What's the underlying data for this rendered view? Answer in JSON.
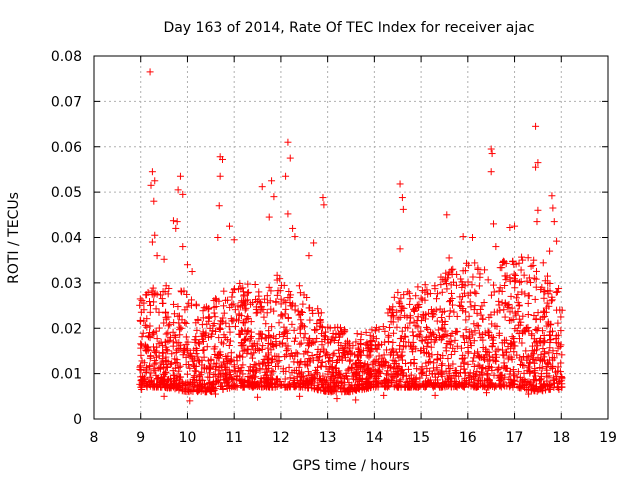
{
  "chart_data": {
    "type": "scatter",
    "title": "Day 163 of 2014, Rate Of TEC Index for receiver ajac",
    "xlabel": "GPS time / hours",
    "ylabel": "ROTI / TECUs",
    "xlim": [
      8,
      19
    ],
    "ylim": [
      0,
      0.08
    ],
    "x_ticks": [
      "8",
      "9",
      "10",
      "11",
      "12",
      "13",
      "14",
      "15",
      "16",
      "17",
      "18",
      "19"
    ],
    "y_ticks": [
      "0",
      "0.01",
      "0.02",
      "0.03",
      "0.04",
      "0.05",
      "0.06",
      "0.07",
      "0.08"
    ],
    "grid": true,
    "marker": "+",
    "series_color": "#ff0000",
    "series": [
      {
        "name": "ROTI",
        "points": [
          [
            9.2,
            0.0765
          ],
          [
            9.25,
            0.0545
          ],
          [
            9.3,
            0.0525
          ],
          [
            9.22,
            0.0515
          ],
          [
            9.28,
            0.048
          ],
          [
            9.3,
            0.0405
          ],
          [
            9.25,
            0.039
          ],
          [
            9.35,
            0.036
          ],
          [
            9.5,
            0.0352
          ],
          [
            9.7,
            0.0437
          ],
          [
            9.8,
            0.0505
          ],
          [
            9.85,
            0.0535
          ],
          [
            9.9,
            0.0495
          ],
          [
            9.78,
            0.0435
          ],
          [
            9.75,
            0.042
          ],
          [
            9.9,
            0.038
          ],
          [
            10.0,
            0.034
          ],
          [
            10.1,
            0.0325
          ],
          [
            10.7,
            0.0578
          ],
          [
            10.75,
            0.0572
          ],
          [
            10.7,
            0.0535
          ],
          [
            10.68,
            0.047
          ],
          [
            10.65,
            0.04
          ],
          [
            10.9,
            0.0425
          ],
          [
            11.0,
            0.0395
          ],
          [
            11.8,
            0.0525
          ],
          [
            11.85,
            0.049
          ],
          [
            11.75,
            0.0445
          ],
          [
            11.6,
            0.0512
          ],
          [
            12.15,
            0.061
          ],
          [
            12.2,
            0.0575
          ],
          [
            12.1,
            0.0535
          ],
          [
            12.15,
            0.0452
          ],
          [
            12.25,
            0.042
          ],
          [
            12.3,
            0.0402
          ],
          [
            12.7,
            0.0388
          ],
          [
            12.9,
            0.0488
          ],
          [
            12.92,
            0.0472
          ],
          [
            12.6,
            0.036
          ],
          [
            14.55,
            0.0518
          ],
          [
            14.6,
            0.0488
          ],
          [
            14.62,
            0.0462
          ],
          [
            14.55,
            0.0375
          ],
          [
            15.55,
            0.045
          ],
          [
            15.6,
            0.0355
          ],
          [
            15.9,
            0.0402
          ],
          [
            16.1,
            0.04
          ],
          [
            16.5,
            0.0595
          ],
          [
            16.52,
            0.0585
          ],
          [
            16.5,
            0.0545
          ],
          [
            16.55,
            0.043
          ],
          [
            16.6,
            0.038
          ],
          [
            16.9,
            0.0422
          ],
          [
            17.0,
            0.0425
          ],
          [
            17.45,
            0.0645
          ],
          [
            17.5,
            0.0565
          ],
          [
            17.45,
            0.0555
          ],
          [
            17.5,
            0.046
          ],
          [
            17.48,
            0.0435
          ],
          [
            17.8,
            0.0492
          ],
          [
            17.82,
            0.0465
          ],
          [
            17.85,
            0.0435
          ],
          [
            17.9,
            0.0392
          ],
          [
            17.75,
            0.037
          ],
          [
            9.02,
            0.0065
          ],
          [
            9.5,
            0.005
          ],
          [
            10.05,
            0.004
          ],
          [
            10.6,
            0.0055
          ],
          [
            11.5,
            0.0048
          ],
          [
            12.4,
            0.005
          ],
          [
            13.2,
            0.0045
          ],
          [
            13.6,
            0.0042
          ],
          [
            14.2,
            0.0052
          ],
          [
            15.3,
            0.0052
          ],
          [
            16.4,
            0.0058
          ],
          [
            17.3,
            0.0055
          ],
          [
            17.95,
            0.0065
          ]
        ]
      }
    ],
    "density_envelope": {
      "x": [
        9.0,
        9.5,
        10.0,
        10.5,
        11.0,
        11.5,
        12.0,
        12.5,
        13.0,
        13.5,
        14.0,
        14.5,
        15.0,
        15.5,
        16.0,
        16.5,
        17.0,
        17.5,
        18.0
      ],
      "low": [
        0.007,
        0.007,
        0.006,
        0.006,
        0.007,
        0.007,
        0.007,
        0.007,
        0.006,
        0.006,
        0.007,
        0.007,
        0.007,
        0.007,
        0.007,
        0.007,
        0.007,
        0.006,
        0.007
      ],
      "high": [
        0.028,
        0.03,
        0.028,
        0.026,
        0.03,
        0.03,
        0.032,
        0.03,
        0.022,
        0.019,
        0.02,
        0.028,
        0.03,
        0.032,
        0.035,
        0.034,
        0.036,
        0.036,
        0.03
      ]
    }
  }
}
